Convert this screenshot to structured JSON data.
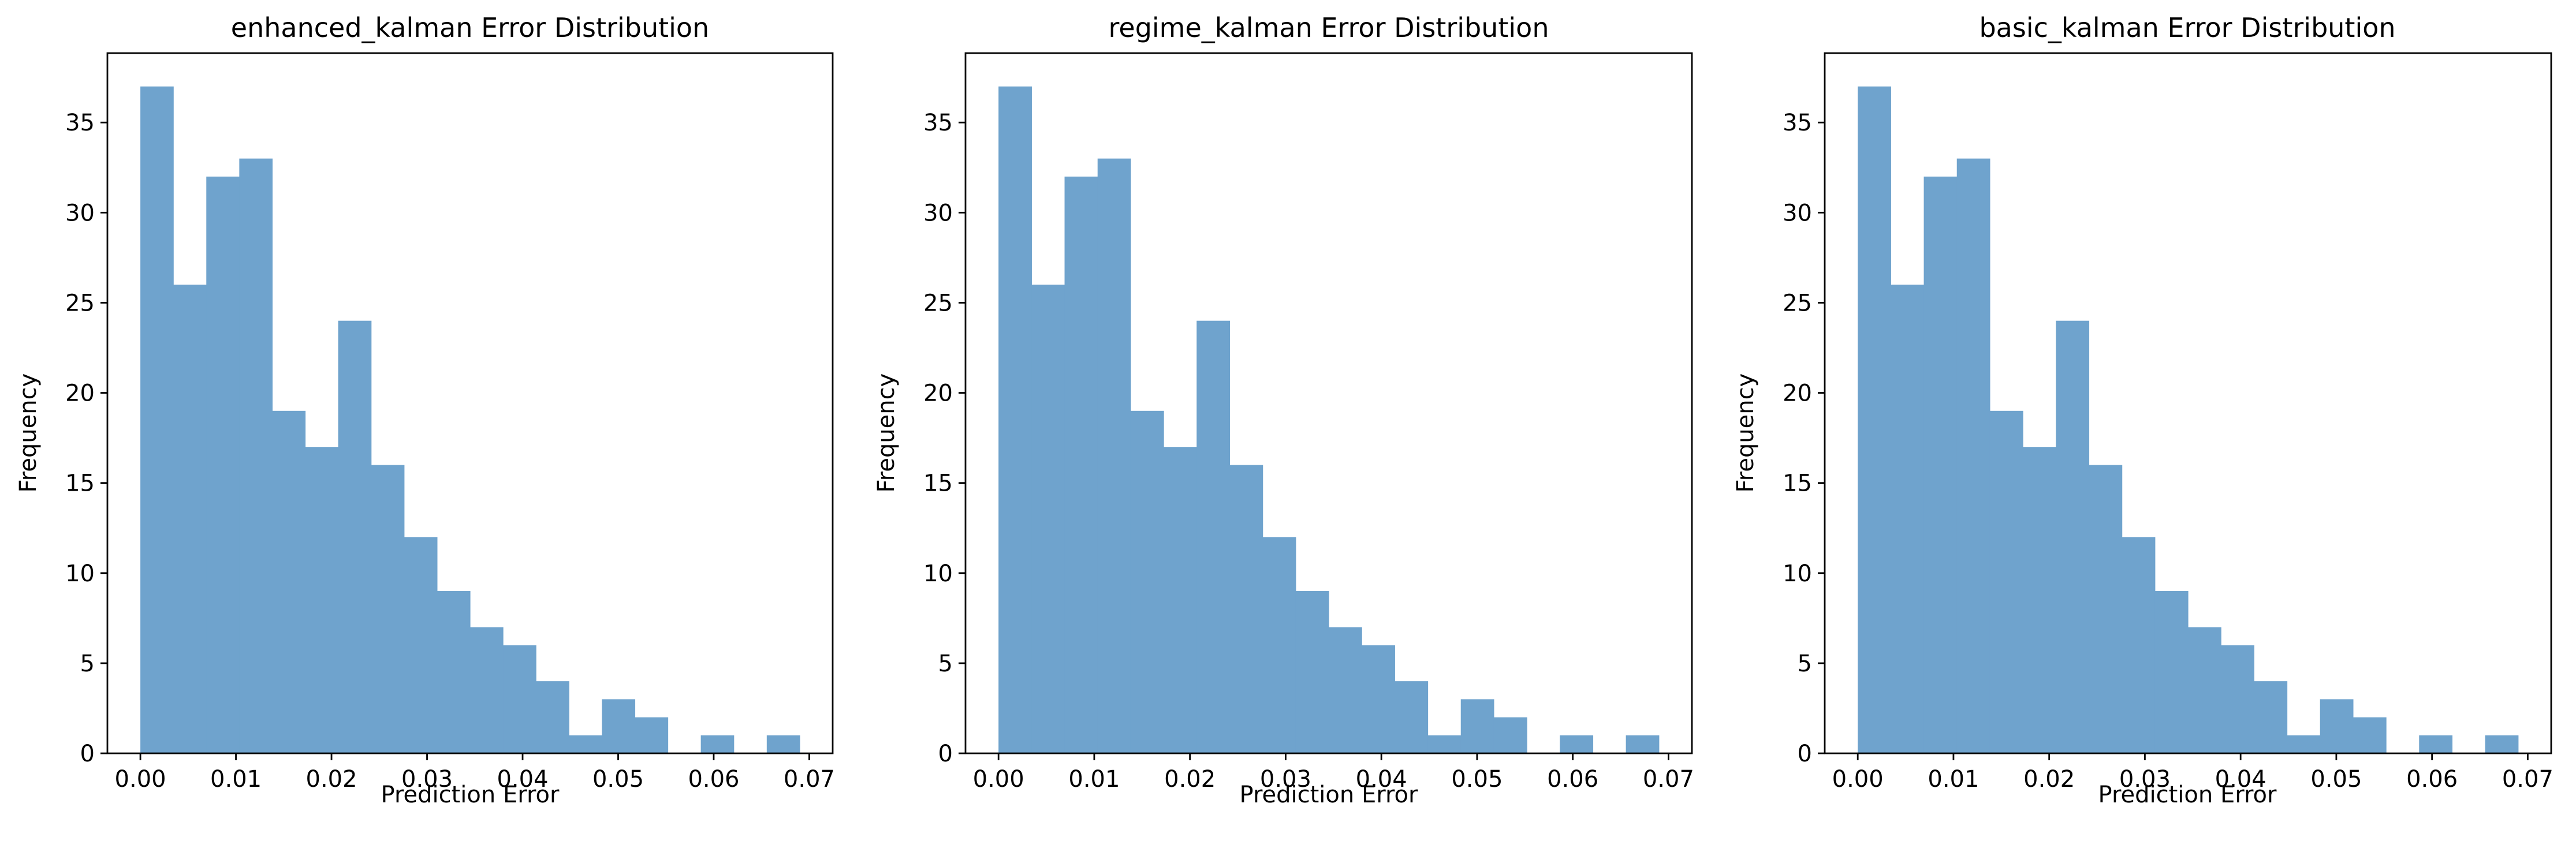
{
  "chart_data": [
    {
      "type": "bar",
      "title": "enhanced_kalman Error Distribution",
      "xlabel": "Prediction Error",
      "ylabel": "Frequency",
      "xlim": [
        -0.00345,
        0.07245
      ],
      "ylim": [
        0,
        38.85
      ],
      "xticks": [
        0.0,
        0.01,
        0.02,
        0.03,
        0.04,
        0.05,
        0.06,
        0.07
      ],
      "xtick_labels": [
        "0.00",
        "0.01",
        "0.02",
        "0.03",
        "0.04",
        "0.05",
        "0.06",
        "0.07"
      ],
      "yticks": [
        0,
        5,
        10,
        15,
        20,
        25,
        30,
        35
      ],
      "ytick_labels": [
        "0",
        "5",
        "10",
        "15",
        "20",
        "25",
        "30",
        "35"
      ],
      "bin_range": [
        0.0,
        0.069
      ],
      "values": [
        37,
        26,
        32,
        33,
        19,
        17,
        24,
        16,
        12,
        9,
        7,
        6,
        4,
        1,
        3,
        2,
        0,
        1,
        0,
        1
      ],
      "color": "#6fa3cd",
      "grid": false
    },
    {
      "type": "bar",
      "title": "regime_kalman Error Distribution",
      "xlabel": "Prediction Error",
      "ylabel": "Frequency",
      "xlim": [
        -0.00345,
        0.07245
      ],
      "ylim": [
        0,
        38.85
      ],
      "xticks": [
        0.0,
        0.01,
        0.02,
        0.03,
        0.04,
        0.05,
        0.06,
        0.07
      ],
      "xtick_labels": [
        "0.00",
        "0.01",
        "0.02",
        "0.03",
        "0.04",
        "0.05",
        "0.06",
        "0.07"
      ],
      "yticks": [
        0,
        5,
        10,
        15,
        20,
        25,
        30,
        35
      ],
      "ytick_labels": [
        "0",
        "5",
        "10",
        "15",
        "20",
        "25",
        "30",
        "35"
      ],
      "bin_range": [
        0.0,
        0.069
      ],
      "values": [
        37,
        26,
        32,
        33,
        19,
        17,
        24,
        16,
        12,
        9,
        7,
        6,
        4,
        1,
        3,
        2,
        0,
        1,
        0,
        1
      ],
      "color": "#6fa3cd",
      "grid": false
    },
    {
      "type": "bar",
      "title": "basic_kalman Error Distribution",
      "xlabel": "Prediction Error",
      "ylabel": "Frequency",
      "xlim": [
        -0.00345,
        0.07245
      ],
      "ylim": [
        0,
        38.85
      ],
      "xticks": [
        0.0,
        0.01,
        0.02,
        0.03,
        0.04,
        0.05,
        0.06,
        0.07
      ],
      "xtick_labels": [
        "0.00",
        "0.01",
        "0.02",
        "0.03",
        "0.04",
        "0.05",
        "0.06",
        "0.07"
      ],
      "yticks": [
        0,
        5,
        10,
        15,
        20,
        25,
        30,
        35
      ],
      "ytick_labels": [
        "0",
        "5",
        "10",
        "15",
        "20",
        "25",
        "30",
        "35"
      ],
      "bin_range": [
        0.0,
        0.069
      ],
      "values": [
        37,
        26,
        32,
        33,
        19,
        17,
        24,
        16,
        12,
        9,
        7,
        6,
        4,
        1,
        3,
        2,
        0,
        1,
        0,
        1
      ],
      "color": "#6fa3cd",
      "grid": false
    }
  ]
}
